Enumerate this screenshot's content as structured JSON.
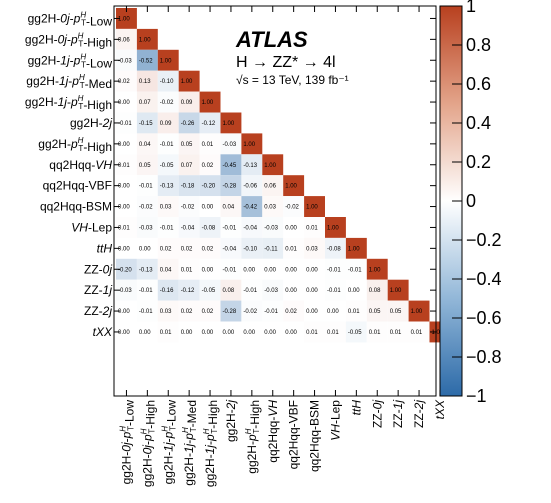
{
  "chart_data": {
    "type": "heatmap",
    "title": "",
    "annotations": {
      "experiment": "ATLAS",
      "process": "H → ZZ* → 4l",
      "energy": "√s = 13 TeV, 139 fb⁻¹"
    },
    "xlabel": "",
    "ylabel": "",
    "labels": [
      "gg2H-0j-p_T^H-Low",
      "gg2H-0j-p_T^H-High",
      "gg2H-1j-p_T^H-Low",
      "gg2H-1j-p_T^H-Med",
      "gg2H-1j-p_T^H-High",
      "gg2H-2j",
      "gg2H-p_T^H-High",
      "qq2Hqq-VH",
      "qq2Hqq-VBF",
      "qq2Hqq-BSM",
      "VH-Lep",
      "ttH",
      "ZZ-0j",
      "ZZ-1j",
      "ZZ-2j",
      "tXX"
    ],
    "values": [
      [
        1.0
      ],
      [
        0.06,
        1.0
      ],
      [
        -0.03,
        -0.52,
        1.0
      ],
      [
        0.02,
        0.13,
        -0.1,
        1.0
      ],
      [
        0.0,
        0.07,
        -0.02,
        0.09,
        1.0
      ],
      [
        -0.01,
        -0.15,
        0.09,
        -0.26,
        -0.12,
        1.0
      ],
      [
        0.0,
        0.04,
        -0.01,
        0.05,
        0.01,
        -0.03,
        1.0
      ],
      [
        0.01,
        0.05,
        -0.05,
        0.07,
        0.02,
        -0.45,
        -0.13,
        1.0
      ],
      [
        0.0,
        -0.01,
        -0.13,
        -0.18,
        -0.2,
        -0.28,
        -0.06,
        0.06,
        1.0
      ],
      [
        0.0,
        -0.02,
        0.03,
        -0.02,
        0.0,
        0.04,
        -0.42,
        0.03,
        -0.02,
        1.0
      ],
      [
        0.01,
        -0.03,
        -0.01,
        -0.04,
        -0.08,
        -0.01,
        -0.04,
        -0.03,
        -0.0,
        0.01,
        1.0
      ],
      [
        0.0,
        0.0,
        0.02,
        0.02,
        0.02,
        -0.04,
        -0.1,
        -0.11,
        0.01,
        0.03,
        -0.08,
        1.0
      ],
      [
        -0.2,
        -0.13,
        0.04,
        0.01,
        0.0,
        -0.01,
        0.0,
        -0.0,
        -0.0,
        -0.0,
        -0.01,
        -0.01,
        1.0
      ],
      [
        -0.03,
        -0.01,
        -0.16,
        -0.12,
        -0.05,
        0.08,
        -0.01,
        -0.03,
        -0.0,
        -0.0,
        -0.01,
        -0.0,
        0.08,
        1.0
      ],
      [
        0.0,
        -0.01,
        0.03,
        0.02,
        0.02,
        -0.28,
        -0.02,
        -0.01,
        0.02,
        -0.0,
        -0.0,
        0.01,
        0.05,
        0.05,
        1.0
      ],
      [
        -0.0,
        -0.0,
        0.01,
        -0.0,
        -0.0,
        0.0,
        0.0,
        0.0,
        0.0,
        0.01,
        0.01,
        -0.05,
        0.01,
        0.01,
        0.01,
        1.0
      ]
    ],
    "colorbar": {
      "range": [
        -1,
        1
      ],
      "ticks": [
        "1",
        "0.8",
        "0.6",
        "0.4",
        "0.2",
        "0",
        "−0.2",
        "−0.4",
        "−0.6",
        "−0.8",
        "−1"
      ]
    },
    "colors": {
      "negative": "#2c6aa8",
      "zero": "#ffffff",
      "positive": "#b8401f"
    },
    "grid": false,
    "legend": "right"
  }
}
